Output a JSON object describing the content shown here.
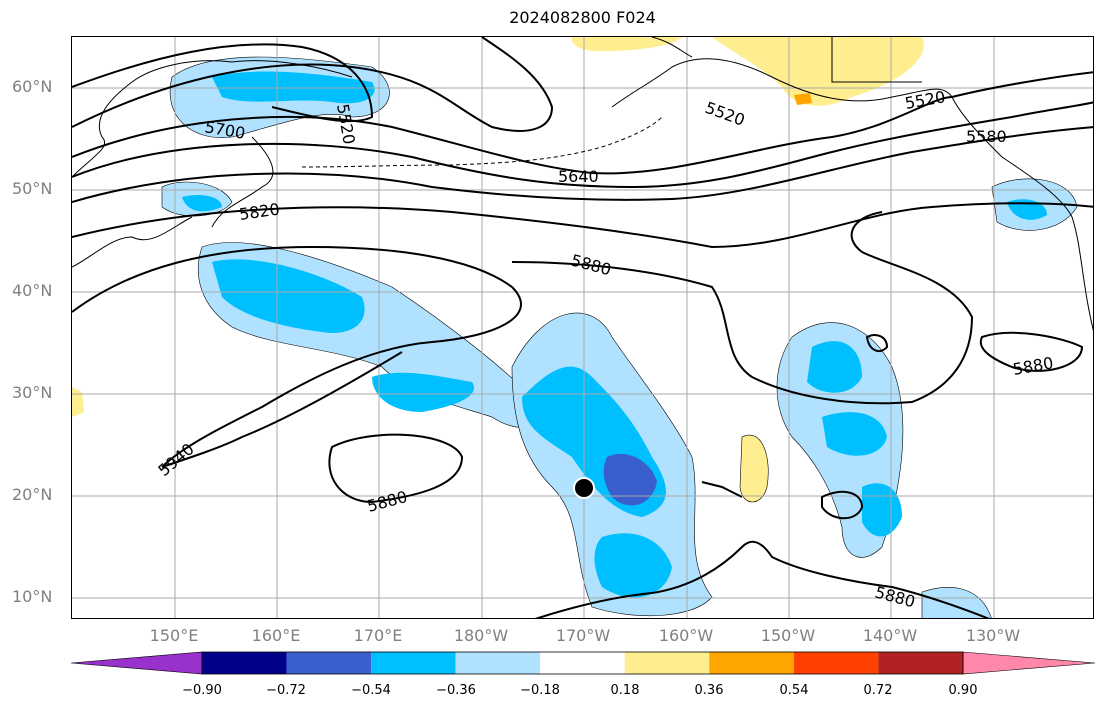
{
  "title": "2024082800 F024",
  "lat_labels": [
    {
      "text": "60°N",
      "lat": 60
    },
    {
      "text": "50°N",
      "lat": 50
    },
    {
      "text": "40°N",
      "lat": 40
    },
    {
      "text": "30°N",
      "lat": 30
    },
    {
      "text": "20°N",
      "lat": 20
    },
    {
      "text": "10°N",
      "lat": 10
    }
  ],
  "lon_labels": [
    {
      "text": "150°E",
      "lon": 150
    },
    {
      "text": "160°E",
      "lon": 160
    },
    {
      "text": "170°E",
      "lon": 170
    },
    {
      "text": "180°W",
      "lon": 180
    },
    {
      "text": "170°W",
      "lon": 190
    },
    {
      "text": "160°W",
      "lon": 200
    },
    {
      "text": "150°W",
      "lon": 210
    },
    {
      "text": "140°W",
      "lon": 220
    },
    {
      "text": "130°W",
      "lon": 230
    }
  ],
  "contour_labels": [
    "5520",
    "5700",
    "5820",
    "5880",
    "5640",
    "5520",
    "5520",
    "5580",
    "5880",
    "5940",
    "5880",
    "5880"
  ],
  "colorbar": {
    "ticks": [
      "−0.90",
      "−0.72",
      "−0.54",
      "−0.36",
      "−0.18",
      "0.18",
      "0.36",
      "0.54",
      "0.72",
      "0.90"
    ],
    "colors": [
      "#9932cc",
      "#00008b",
      "#3a5fcd",
      "#00bfff",
      "#b0e2ff",
      "#ffffff",
      "#ffee8f",
      "#ffa500",
      "#ff4000",
      "#b22222",
      "#ff88aa"
    ]
  },
  "marker": {
    "lat": 20.8,
    "lon": 190.0
  }
}
